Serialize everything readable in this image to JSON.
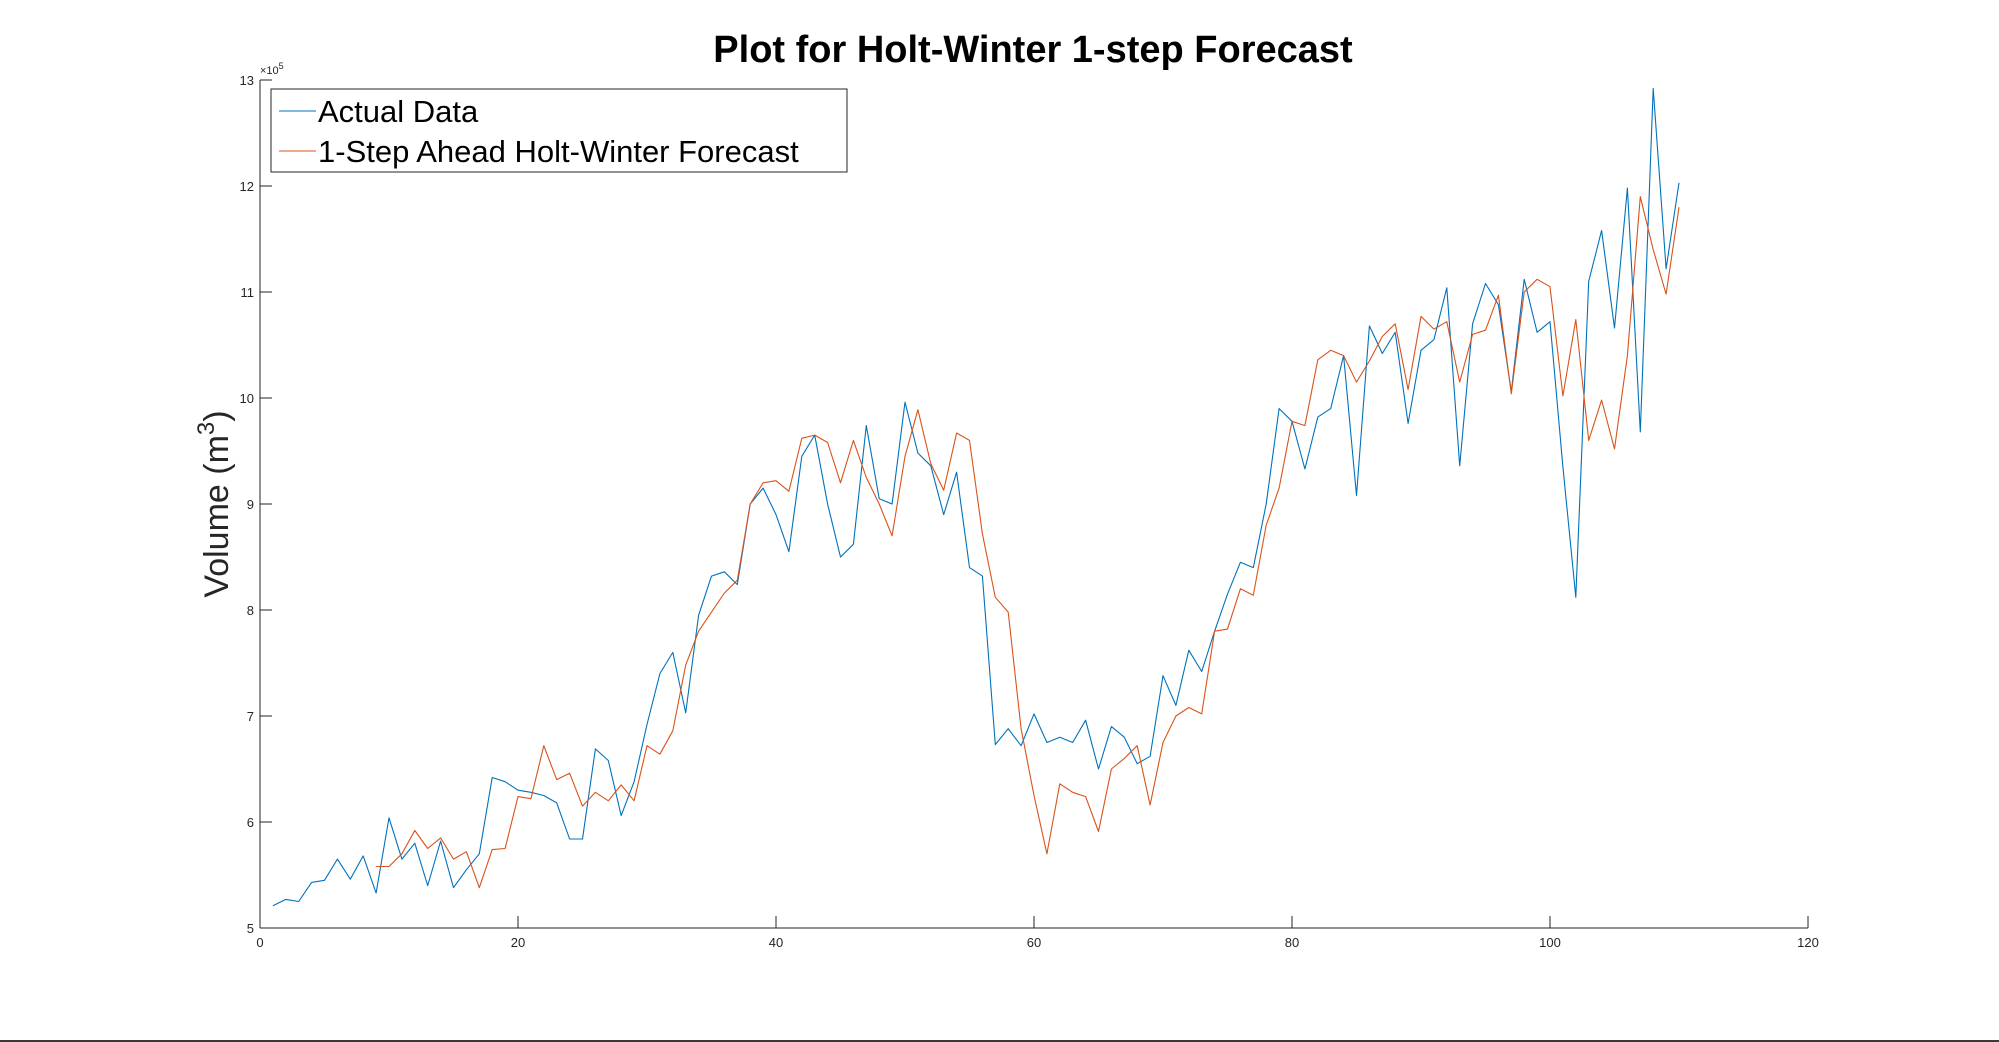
{
  "chart_data": {
    "type": "line",
    "title": "Plot for Holt-Winter 1-step Forecast",
    "xlabel": "",
    "ylabel": "Volume (m",
    "ylabel_superscript": "3",
    "ylabel_close": ")",
    "y_exponent_base": "×10",
    "y_exponent_power": "5",
    "xlim": [
      0,
      120
    ],
    "ylim": [
      5,
      13
    ],
    "y_scale_factor": 100000,
    "xticks": [
      0,
      20,
      40,
      60,
      80,
      100,
      120
    ],
    "yticks": [
      5,
      6,
      7,
      8,
      9,
      10,
      11,
      12,
      13
    ],
    "grid": false,
    "legend_position": "top-left",
    "series": [
      {
        "name": "Actual Data",
        "color": "#0072BD",
        "x": [
          1,
          2,
          3,
          4,
          5,
          6,
          7,
          8,
          9,
          10,
          11,
          12,
          13,
          14,
          15,
          16,
          17,
          18,
          19,
          20,
          21,
          22,
          23,
          24,
          25,
          26,
          27,
          28,
          29,
          30,
          31,
          32,
          33,
          34,
          35,
          36,
          37,
          38,
          39,
          40,
          41,
          42,
          43,
          44,
          45,
          46,
          47,
          48,
          49,
          50,
          51,
          52,
          53,
          54,
          55,
          56,
          57,
          58,
          59,
          60,
          61,
          62,
          63,
          64,
          65,
          66,
          67,
          68,
          69,
          70,
          71,
          72,
          73,
          74,
          75,
          76,
          77,
          78,
          79,
          80,
          81,
          82,
          83,
          84,
          85,
          86,
          87,
          88,
          89,
          90,
          91,
          92,
          93,
          94,
          95,
          96,
          97,
          98,
          99,
          100,
          101,
          102,
          103,
          104,
          105,
          106,
          107,
          108,
          109,
          110
        ],
        "y": [
          5.21,
          5.27,
          5.25,
          5.43,
          5.45,
          5.65,
          5.46,
          5.68,
          5.33,
          6.04,
          5.65,
          5.8,
          5.4,
          5.82,
          5.38,
          5.55,
          5.7,
          6.42,
          6.38,
          6.3,
          6.28,
          6.25,
          6.18,
          5.84,
          5.84,
          6.69,
          6.58,
          6.06,
          6.38,
          6.92,
          7.4,
          7.6,
          7.03,
          7.95,
          8.32,
          8.36,
          8.24,
          9.0,
          9.15,
          8.9,
          8.55,
          9.45,
          9.65,
          9.0,
          8.5,
          8.62,
          9.74,
          9.05,
          9.0,
          9.96,
          9.48,
          9.36,
          8.9,
          9.3,
          8.4,
          8.32,
          6.73,
          6.88,
          6.72,
          7.02,
          6.75,
          6.8,
          6.75,
          6.96,
          6.5,
          6.9,
          6.8,
          6.55,
          6.62,
          7.38,
          7.1,
          7.62,
          7.42,
          7.8,
          8.15,
          8.45,
          8.4,
          9.0,
          9.9,
          9.78,
          9.33,
          9.82,
          9.9,
          10.4,
          9.08,
          10.68,
          10.42,
          10.62,
          9.76,
          10.45,
          10.55,
          11.04,
          9.36,
          10.7,
          11.08,
          10.88,
          10.06,
          11.12,
          10.62,
          10.72,
          9.35,
          8.12,
          11.1,
          11.58,
          10.66,
          11.98,
          9.68,
          12.92,
          11.22,
          12.03
        ]
      },
      {
        "name": "1-Step Ahead Holt-Winter Forecast",
        "color": "#D95319",
        "x": [
          9,
          10,
          11,
          12,
          13,
          14,
          15,
          16,
          17,
          18,
          19,
          20,
          21,
          22,
          23,
          24,
          25,
          26,
          27,
          28,
          29,
          30,
          31,
          32,
          33,
          34,
          35,
          36,
          37,
          38,
          39,
          40,
          41,
          42,
          43,
          44,
          45,
          46,
          47,
          48,
          49,
          50,
          51,
          52,
          53,
          54,
          55,
          56,
          57,
          58,
          59,
          60,
          61,
          62,
          63,
          64,
          65,
          66,
          67,
          68,
          69,
          70,
          71,
          72,
          73,
          74,
          75,
          76,
          77,
          78,
          79,
          80,
          81,
          82,
          83,
          84,
          85,
          86,
          87,
          88,
          89,
          90,
          91,
          92,
          93,
          94,
          95,
          96,
          97,
          98,
          99,
          100,
          101,
          102,
          103,
          104,
          105,
          106,
          107,
          108,
          109,
          110
        ],
        "y": [
          5.58,
          5.58,
          5.7,
          5.92,
          5.75,
          5.85,
          5.65,
          5.72,
          5.38,
          5.74,
          5.75,
          6.24,
          6.22,
          6.72,
          6.4,
          6.46,
          6.15,
          6.28,
          6.2,
          6.35,
          6.2,
          6.72,
          6.64,
          6.86,
          7.48,
          7.8,
          7.98,
          8.16,
          8.28,
          9.0,
          9.2,
          9.22,
          9.12,
          9.62,
          9.65,
          9.58,
          9.2,
          9.6,
          9.25,
          9.0,
          8.7,
          9.45,
          9.89,
          9.38,
          9.13,
          9.67,
          9.6,
          8.72,
          8.12,
          7.98,
          6.88,
          6.25,
          5.7,
          6.36,
          6.28,
          6.24,
          5.91,
          6.5,
          6.6,
          6.72,
          6.16,
          6.75,
          7.0,
          7.08,
          7.02,
          7.8,
          7.82,
          8.2,
          8.14,
          8.8,
          9.15,
          9.78,
          9.74,
          10.36,
          10.45,
          10.4,
          10.15,
          10.35,
          10.58,
          10.7,
          10.08,
          10.77,
          10.65,
          10.72,
          10.15,
          10.6,
          10.64,
          10.97,
          10.04,
          11.0,
          11.12,
          11.05,
          10.02,
          10.74,
          9.6,
          9.98,
          9.52,
          10.4,
          11.9,
          11.4,
          10.98,
          11.8
        ]
      }
    ]
  }
}
